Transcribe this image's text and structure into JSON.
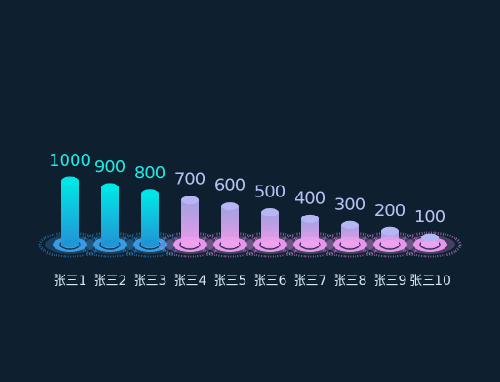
{
  "chart_data": {
    "type": "bar",
    "title": "",
    "xlabel": "",
    "ylabel": "",
    "categories": [
      "张三1",
      "张三2",
      "张三3",
      "张三4",
      "张三5",
      "张三6",
      "张三7",
      "张三8",
      "张三9",
      "张三10"
    ],
    "values": [
      1000,
      900,
      800,
      700,
      600,
      500,
      400,
      300,
      200,
      100
    ],
    "ylim": [
      0,
      1000
    ],
    "grid": false,
    "legend": "none"
  },
  "colors": {
    "background": "#0e2030",
    "top_series_bar": "#00e5e8",
    "top_series_bar_bottom": "#1f96d6",
    "top_series_label": "#1fe9e3",
    "top_series_base": "#3aa0ea",
    "low_series_bar_top": "#b6b6f4",
    "low_series_bar_bottom": "#f0a2f0",
    "low_series_label": "#b9c1f2",
    "low_series_base": "#ef9bf3",
    "category_label": "#d9e6f2"
  }
}
